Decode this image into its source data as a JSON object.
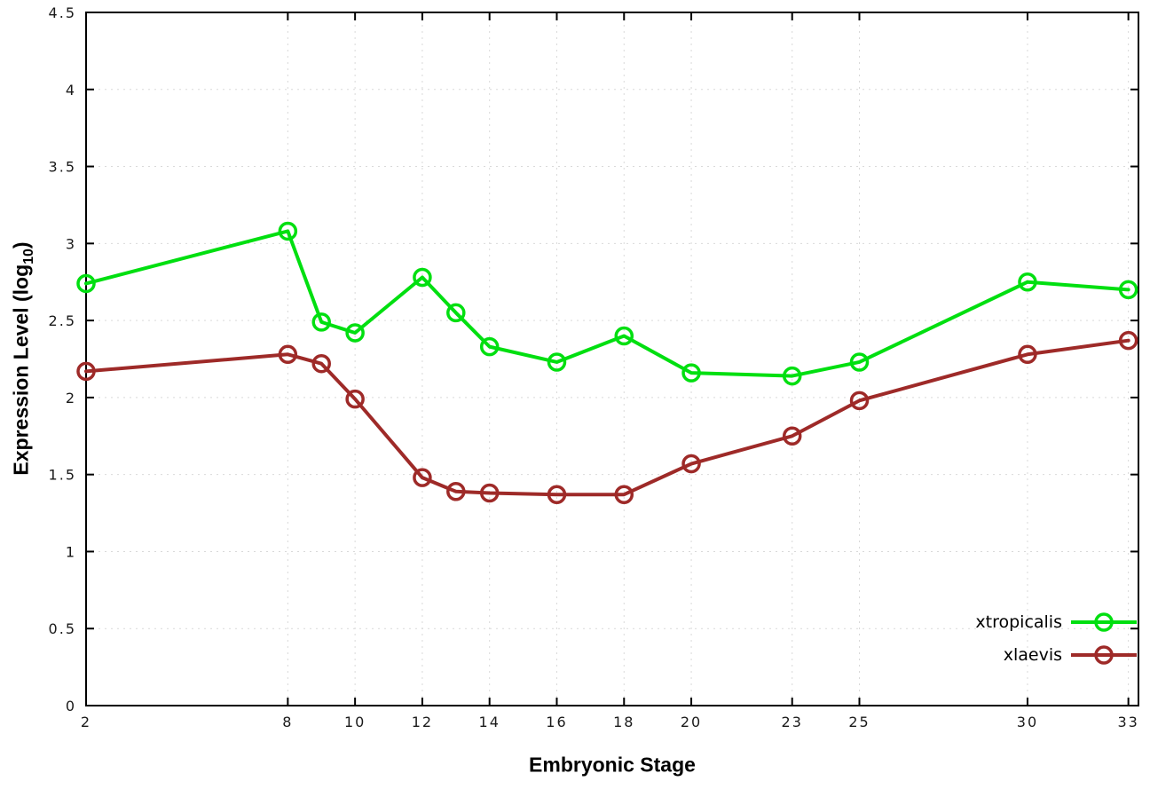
{
  "chart_data": {
    "type": "line",
    "title": "",
    "xlabel": "Embryonic Stage",
    "ylabel": "Expression Level (log10)",
    "ylabel_parts": {
      "prefix": "Expression Level (log",
      "sub": "10",
      "suffix": ")"
    },
    "xlim": [
      2,
      33.3
    ],
    "ylim": [
      0,
      4.5
    ],
    "x": [
      2,
      8,
      9,
      10,
      12,
      13,
      14,
      16,
      18,
      20,
      23,
      25,
      30,
      33
    ],
    "xtick_values": [
      2,
      8,
      10,
      12,
      14,
      16,
      18,
      20,
      23,
      25,
      30,
      33
    ],
    "xtick_labels": [
      "2",
      "8",
      "10",
      "12",
      "14",
      "16",
      "18",
      "20",
      "23",
      "25",
      "30",
      "33"
    ],
    "ytick_values": [
      0,
      0.5,
      1,
      1.5,
      2,
      2.5,
      3,
      3.5,
      4,
      4.5
    ],
    "ytick_labels": [
      "0",
      "0.5",
      "1",
      "1.5",
      "2",
      "2.5",
      "3",
      "3.5",
      "4",
      "4.5"
    ],
    "grid": true,
    "legend_position": "bottom-right",
    "series": [
      {
        "name": "xtropicalis",
        "color": "#00df10",
        "values": [
          2.74,
          3.08,
          2.49,
          2.42,
          2.78,
          2.55,
          2.33,
          2.23,
          2.4,
          2.16,
          2.14,
          2.23,
          2.75,
          2.7
        ]
      },
      {
        "name": "xlaevis",
        "color": "#9e2a28",
        "values": [
          2.17,
          2.28,
          2.22,
          1.99,
          1.48,
          1.39,
          1.38,
          1.37,
          1.37,
          1.57,
          1.75,
          1.98,
          2.28,
          2.37
        ]
      }
    ],
    "styles": {
      "grid_color": "#d9d9d9",
      "axis_color": "#000000",
      "tick_label_color": "#1a1a1a",
      "marker": "open-circle",
      "line_width": 4,
      "marker_radius": 9,
      "marker_stroke_width": 3.5
    }
  }
}
